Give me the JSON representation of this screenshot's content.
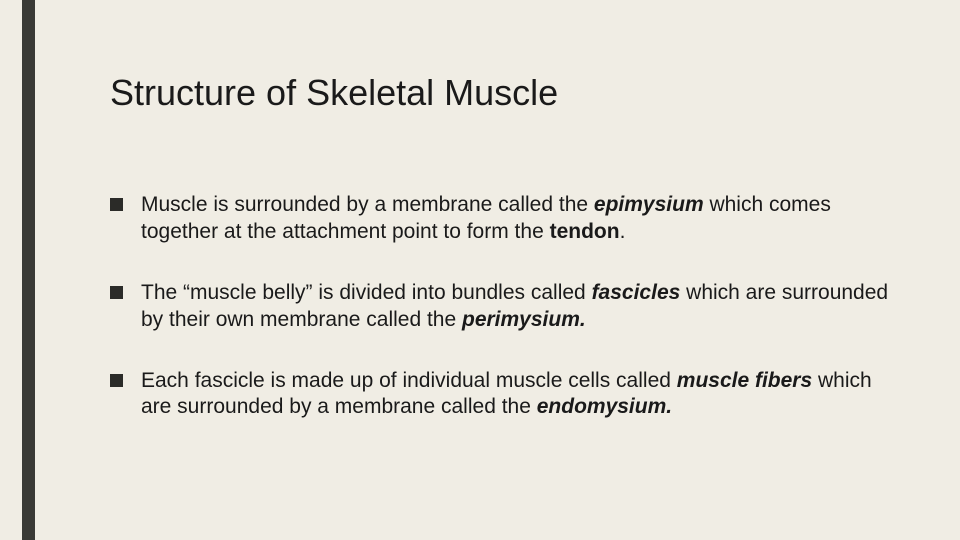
{
  "slide": {
    "title": "Structure of Skeletal Muscle",
    "title_fontsize": 36,
    "body_fontsize": 21,
    "background_color": "#f0ede4",
    "accent_bar_color": "#3a3a36",
    "text_color": "#1a1a1a",
    "bullet_marker_color": "#2b2b28",
    "bullets": [
      {
        "runs": [
          {
            "t": "Muscle is surrounded by a membrane called the ",
            "s": ""
          },
          {
            "t": "epimysium",
            "s": "bolditalic"
          },
          {
            "t": " which comes together at the attachment point to form the ",
            "s": ""
          },
          {
            "t": "tendon",
            "s": "bold"
          },
          {
            "t": ".",
            "s": ""
          }
        ]
      },
      {
        "runs": [
          {
            "t": "The “muscle belly” is divided into bundles called ",
            "s": ""
          },
          {
            "t": "fascicles",
            "s": "bolditalic"
          },
          {
            "t": " which are surrounded by their own membrane called the ",
            "s": ""
          },
          {
            "t": "perimysium.",
            "s": "bolditalic"
          }
        ]
      },
      {
        "runs": [
          {
            "t": "Each fascicle is made up of individual muscle cells called ",
            "s": ""
          },
          {
            "t": "muscle fibers",
            "s": "bolditalic"
          },
          {
            "t": " which are surrounded by a membrane called the ",
            "s": ""
          },
          {
            "t": "endomysium.",
            "s": "bolditalic"
          }
        ]
      }
    ]
  }
}
